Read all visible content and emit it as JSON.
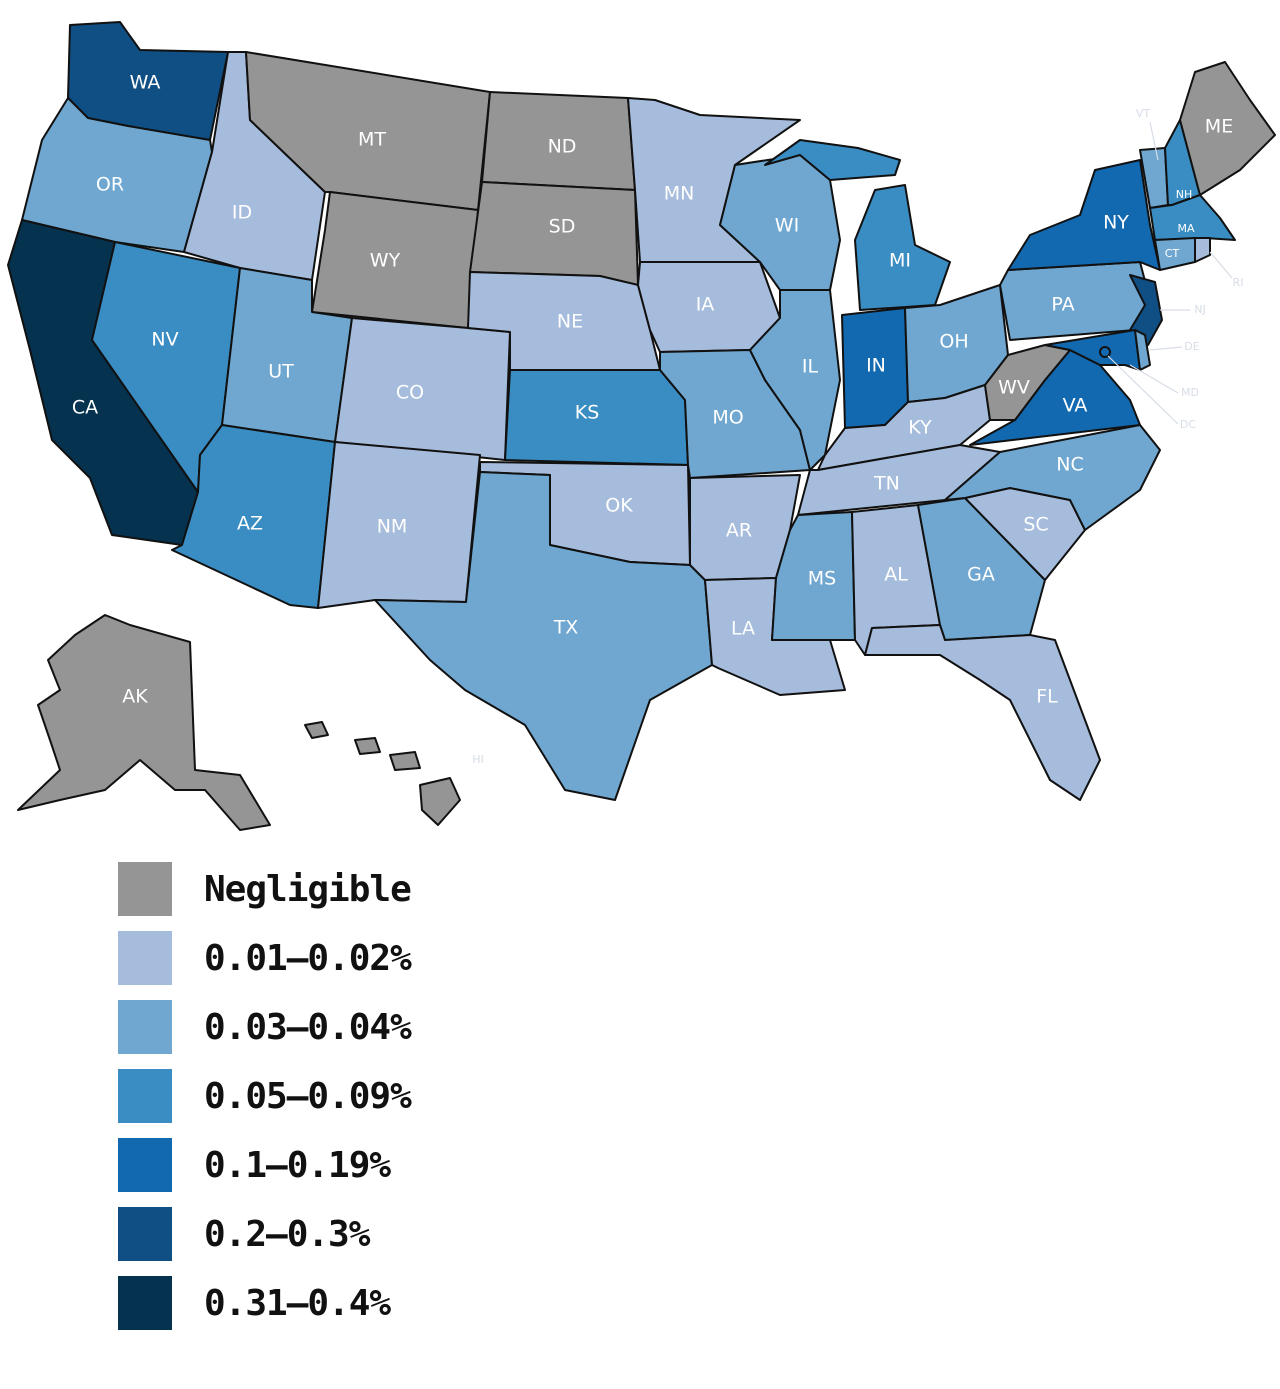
{
  "legend": {
    "items": [
      {
        "label": "Negligible",
        "color": "#959595"
      },
      {
        "label": "0.01–0.02%",
        "color": "#a6bcdc"
      },
      {
        "label": "0.03–0.04%",
        "color": "#6fa7d0"
      },
      {
        "label": "0.05–0.09%",
        "color": "#3a8dc2"
      },
      {
        "label": "0.1–0.19%",
        "color": "#1369af"
      },
      {
        "label": "0.2–0.3%",
        "color": "#0f4f84"
      },
      {
        "label": "0.31–0.4%",
        "color": "#05324f"
      }
    ]
  },
  "states": [
    {
      "abbr": "WA",
      "tier": 5
    },
    {
      "abbr": "OR",
      "tier": 2
    },
    {
      "abbr": "CA",
      "tier": 6
    },
    {
      "abbr": "ID",
      "tier": 1
    },
    {
      "abbr": "NV",
      "tier": 3
    },
    {
      "abbr": "MT",
      "tier": 0
    },
    {
      "abbr": "WY",
      "tier": 0
    },
    {
      "abbr": "UT",
      "tier": 2
    },
    {
      "abbr": "AZ",
      "tier": 3
    },
    {
      "abbr": "CO",
      "tier": 1
    },
    {
      "abbr": "NM",
      "tier": 1
    },
    {
      "abbr": "ND",
      "tier": 0
    },
    {
      "abbr": "SD",
      "tier": 0
    },
    {
      "abbr": "NE",
      "tier": 1
    },
    {
      "abbr": "KS",
      "tier": 3
    },
    {
      "abbr": "OK",
      "tier": 1
    },
    {
      "abbr": "TX",
      "tier": 2
    },
    {
      "abbr": "MN",
      "tier": 1
    },
    {
      "abbr": "IA",
      "tier": 1
    },
    {
      "abbr": "MO",
      "tier": 2
    },
    {
      "abbr": "AR",
      "tier": 1
    },
    {
      "abbr": "LA",
      "tier": 1
    },
    {
      "abbr": "WI",
      "tier": 2
    },
    {
      "abbr": "IL",
      "tier": 2
    },
    {
      "abbr": "MI",
      "tier": 3
    },
    {
      "abbr": "IN",
      "tier": 4
    },
    {
      "abbr": "OH",
      "tier": 2
    },
    {
      "abbr": "KY",
      "tier": 1
    },
    {
      "abbr": "TN",
      "tier": 1
    },
    {
      "abbr": "MS",
      "tier": 2
    },
    {
      "abbr": "AL",
      "tier": 1
    },
    {
      "abbr": "GA",
      "tier": 2
    },
    {
      "abbr": "FL",
      "tier": 1
    },
    {
      "abbr": "SC",
      "tier": 1
    },
    {
      "abbr": "NC",
      "tier": 2
    },
    {
      "abbr": "VA",
      "tier": 4
    },
    {
      "abbr": "WV",
      "tier": 0
    },
    {
      "abbr": "PA",
      "tier": 2
    },
    {
      "abbr": "NY",
      "tier": 4
    },
    {
      "abbr": "NJ",
      "tier": 5
    },
    {
      "abbr": "DE",
      "tier": 2
    },
    {
      "abbr": "MD",
      "tier": 4
    },
    {
      "abbr": "DC",
      "tier": 4
    },
    {
      "abbr": "CT",
      "tier": 2
    },
    {
      "abbr": "RI",
      "tier": 1
    },
    {
      "abbr": "MA",
      "tier": 3
    },
    {
      "abbr": "VT",
      "tier": 2
    },
    {
      "abbr": "NH",
      "tier": 3
    },
    {
      "abbr": "ME",
      "tier": 0
    },
    {
      "abbr": "AK",
      "tier": 0
    },
    {
      "abbr": "HI",
      "tier": 0
    }
  ]
}
